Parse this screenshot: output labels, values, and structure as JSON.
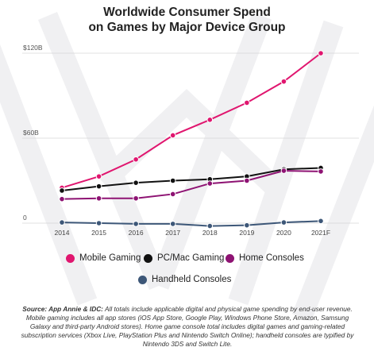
{
  "title_line1": "Worldwide Consumer Spend",
  "title_line2": "on Games by Major Device Group",
  "legend": [
    {
      "label": "Mobile Gaming",
      "color": "#e0166f"
    },
    {
      "label": "PC/Mac Gaming",
      "color": "#111111"
    },
    {
      "label": "Home Consoles",
      "color": "#8e1373"
    },
    {
      "label": "Handheld Consoles",
      "color": "#3d5778"
    }
  ],
  "source_bold": "Source: App Annie & IDC:",
  "source_text": "All totals include applicable digital and physical game spending by end-user revenue. Mobile gaming includes all app stores (iOS App Store, Google Play, Windows Phone Store, Amazon, Samsung Galaxy and third-party Android stores). Home game console total includes digital games and gaming-related subscription services (Xbox Live, PlayStation Plus and Nintendo Switch Online); handheld consoles are typified by Nintendo 3DS and Switch Lite.",
  "chart_data": {
    "type": "line",
    "categories": [
      "2014",
      "2015",
      "2016",
      "2017",
      "2018",
      "2019",
      "2020",
      "2021F"
    ],
    "y_tick_labels": [
      "$120B",
      "$60B",
      "0"
    ],
    "y_ticks": [
      120,
      60,
      0
    ],
    "ylim": [
      0,
      120
    ],
    "grid": true,
    "legend_position": "bottom",
    "series": [
      {
        "name": "Mobile Gaming",
        "color": "#e0166f",
        "values": [
          25,
          33,
          45,
          62,
          73,
          85,
          100,
          120
        ]
      },
      {
        "name": "PC/Mac Gaming",
        "color": "#111111",
        "values": [
          23,
          26,
          28.5,
          30,
          31,
          33,
          38,
          39
        ]
      },
      {
        "name": "Home Consoles",
        "color": "#8e1373",
        "values": [
          17,
          17.5,
          17.5,
          20.5,
          28,
          30,
          37,
          36.5
        ]
      },
      {
        "name": "Handheld Consoles",
        "color": "#3d5778",
        "values": [
          0.5,
          0,
          -0.5,
          -0.5,
          -2,
          -1.5,
          0.5,
          1.5
        ]
      }
    ]
  }
}
